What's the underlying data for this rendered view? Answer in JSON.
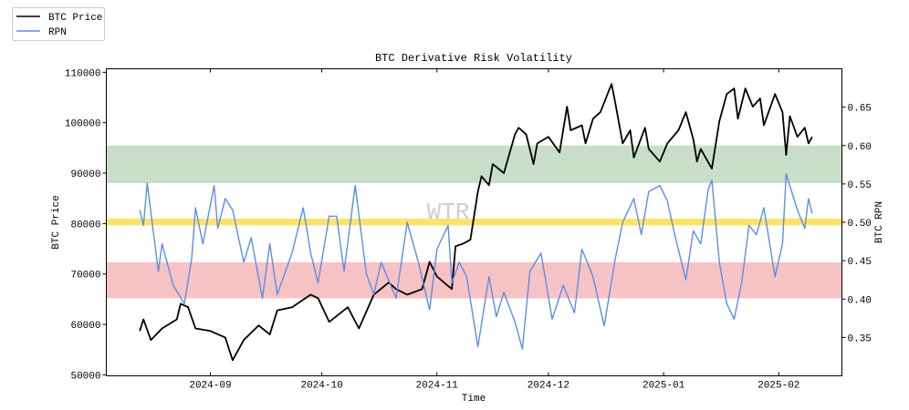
{
  "chart_data": {
    "type": "line",
    "title": "BTC Derivative Risk Volatility",
    "xlabel": "Time",
    "ylabel_left": "BTC Price",
    "ylabel_right": "BTC RPN",
    "watermark": "WTR",
    "legend_position": "top-left (outside)",
    "grid": false,
    "xlim": [
      "2024-08-04",
      "2025-02-18"
    ],
    "ylim_left": [
      49800,
      110700
    ],
    "ylim_right": [
      0.3,
      0.7
    ],
    "x_ticks": [
      "2024-09",
      "2024-10",
      "2024-11",
      "2024-12",
      "2025-01",
      "2025-02"
    ],
    "y_ticks_left": [
      50000,
      60000,
      70000,
      80000,
      90000,
      100000,
      110000
    ],
    "y_ticks_right": [
      "0.35",
      "0.40",
      "0.45",
      "0.50",
      "0.55",
      "0.60",
      "0.65"
    ],
    "bands_right_axis": [
      {
        "name": "high-zone",
        "from": 0.551,
        "to": 0.6,
        "color": "#c8dec8"
      },
      {
        "name": "mid-line",
        "from": 0.496,
        "to": 0.505,
        "color": "#fbe36a"
      },
      {
        "name": "low-zone",
        "from": 0.401,
        "to": 0.448,
        "color": "#f7c2c4"
      }
    ],
    "series": [
      {
        "name": "BTC Price",
        "axis": "left",
        "color": "#000000",
        "points": [
          [
            "2024-08-13",
            58700
          ],
          [
            "2024-08-14",
            61000
          ],
          [
            "2024-08-16",
            56900
          ],
          [
            "2024-08-19",
            59200
          ],
          [
            "2024-08-23",
            61000
          ],
          [
            "2024-08-24",
            64100
          ],
          [
            "2024-08-26",
            63400
          ],
          [
            "2024-08-28",
            59200
          ],
          [
            "2024-09-01",
            58700
          ],
          [
            "2024-09-05",
            57400
          ],
          [
            "2024-09-07",
            52900
          ],
          [
            "2024-09-10",
            56900
          ],
          [
            "2024-09-14",
            59800
          ],
          [
            "2024-09-17",
            58000
          ],
          [
            "2024-09-19",
            62800
          ],
          [
            "2024-09-23",
            63400
          ],
          [
            "2024-09-28",
            65900
          ],
          [
            "2024-09-30",
            65200
          ],
          [
            "2024-10-03",
            60500
          ],
          [
            "2024-10-08",
            63400
          ],
          [
            "2024-10-11",
            59200
          ],
          [
            "2024-10-15",
            65900
          ],
          [
            "2024-10-19",
            68300
          ],
          [
            "2024-10-21",
            67000
          ],
          [
            "2024-10-24",
            65900
          ],
          [
            "2024-10-28",
            67000
          ],
          [
            "2024-10-30",
            72400
          ],
          [
            "2024-11-01",
            69500
          ],
          [
            "2024-11-05",
            67000
          ],
          [
            "2024-11-06",
            75500
          ],
          [
            "2024-11-08",
            76000
          ],
          [
            "2024-11-10",
            76800
          ],
          [
            "2024-11-12",
            86300
          ],
          [
            "2024-11-13",
            89400
          ],
          [
            "2024-11-15",
            87600
          ],
          [
            "2024-11-16",
            91800
          ],
          [
            "2024-11-19",
            90000
          ],
          [
            "2024-11-22",
            97700
          ],
          [
            "2024-11-23",
            99000
          ],
          [
            "2024-11-25",
            97700
          ],
          [
            "2024-11-27",
            91800
          ],
          [
            "2024-11-28",
            95900
          ],
          [
            "2024-12-01",
            97200
          ],
          [
            "2024-12-04",
            94100
          ],
          [
            "2024-12-06",
            103200
          ],
          [
            "2024-12-07",
            98500
          ],
          [
            "2024-12-10",
            99500
          ],
          [
            "2024-12-11",
            95900
          ],
          [
            "2024-12-13",
            100800
          ],
          [
            "2024-12-15",
            102100
          ],
          [
            "2024-12-18",
            107700
          ],
          [
            "2024-12-19",
            103900
          ],
          [
            "2024-12-21",
            95900
          ],
          [
            "2024-12-23",
            98500
          ],
          [
            "2024-12-24",
            93100
          ],
          [
            "2024-12-27",
            99000
          ],
          [
            "2024-12-28",
            94800
          ],
          [
            "2024-12-31",
            92300
          ],
          [
            "2025-01-02",
            95900
          ],
          [
            "2025-01-05",
            98500
          ],
          [
            "2025-01-07",
            102100
          ],
          [
            "2025-01-09",
            96700
          ],
          [
            "2025-01-10",
            92300
          ],
          [
            "2025-01-11",
            94800
          ],
          [
            "2025-01-14",
            90900
          ],
          [
            "2025-01-16",
            100300
          ],
          [
            "2025-01-18",
            105700
          ],
          [
            "2025-01-20",
            106800
          ],
          [
            "2025-01-21",
            100800
          ],
          [
            "2025-01-23",
            106800
          ],
          [
            "2025-01-25",
            103200
          ],
          [
            "2025-01-27",
            104800
          ],
          [
            "2025-01-28",
            99500
          ],
          [
            "2025-01-31",
            105700
          ],
          [
            "2025-02-02",
            102100
          ],
          [
            "2025-02-03",
            93600
          ],
          [
            "2025-02-04",
            101300
          ],
          [
            "2025-02-06",
            97200
          ],
          [
            "2025-02-08",
            99000
          ],
          [
            "2025-02-09",
            95900
          ],
          [
            "2025-02-10",
            97200
          ]
        ]
      },
      {
        "name": "RPN",
        "axis": "right",
        "color": "#5b8ee6",
        "points": [
          [
            "2024-08-13",
            0.516
          ],
          [
            "2024-08-14",
            0.496
          ],
          [
            "2024-08-15",
            0.551
          ],
          [
            "2024-08-18",
            0.436
          ],
          [
            "2024-08-19",
            0.472
          ],
          [
            "2024-08-22",
            0.418
          ],
          [
            "2024-08-25",
            0.394
          ],
          [
            "2024-08-27",
            0.453
          ],
          [
            "2024-08-28",
            0.519
          ],
          [
            "2024-08-30",
            0.472
          ],
          [
            "2024-09-02",
            0.548
          ],
          [
            "2024-09-03",
            0.492
          ],
          [
            "2024-09-05",
            0.531
          ],
          [
            "2024-09-07",
            0.516
          ],
          [
            "2024-09-10",
            0.448
          ],
          [
            "2024-09-12",
            0.48
          ],
          [
            "2024-09-15",
            0.401
          ],
          [
            "2024-09-17",
            0.472
          ],
          [
            "2024-09-19",
            0.406
          ],
          [
            "2024-09-23",
            0.46
          ],
          [
            "2024-09-26",
            0.519
          ],
          [
            "2024-09-28",
            0.46
          ],
          [
            "2024-09-30",
            0.421
          ],
          [
            "2024-10-03",
            0.508
          ],
          [
            "2024-10-05",
            0.508
          ],
          [
            "2024-10-07",
            0.436
          ],
          [
            "2024-10-10",
            0.548
          ],
          [
            "2024-10-13",
            0.433
          ],
          [
            "2024-10-15",
            0.406
          ],
          [
            "2024-10-17",
            0.448
          ],
          [
            "2024-10-21",
            0.401
          ],
          [
            "2024-10-24",
            0.5
          ],
          [
            "2024-10-27",
            0.448
          ],
          [
            "2024-10-30",
            0.386
          ],
          [
            "2024-11-01",
            0.465
          ],
          [
            "2024-11-04",
            0.496
          ],
          [
            "2024-11-05",
            0.421
          ],
          [
            "2024-11-07",
            0.448
          ],
          [
            "2024-11-09",
            0.429
          ],
          [
            "2024-11-12",
            0.338
          ],
          [
            "2024-11-15",
            0.429
          ],
          [
            "2024-11-17",
            0.377
          ],
          [
            "2024-11-19",
            0.409
          ],
          [
            "2024-11-22",
            0.37
          ],
          [
            "2024-11-24",
            0.335
          ],
          [
            "2024-11-26",
            0.436
          ],
          [
            "2024-11-29",
            0.46
          ],
          [
            "2024-12-02",
            0.374
          ],
          [
            "2024-12-05",
            0.418
          ],
          [
            "2024-12-08",
            0.382
          ],
          [
            "2024-12-10",
            0.465
          ],
          [
            "2024-12-13",
            0.429
          ],
          [
            "2024-12-16",
            0.365
          ],
          [
            "2024-12-19",
            0.453
          ],
          [
            "2024-12-21",
            0.5
          ],
          [
            "2024-12-24",
            0.531
          ],
          [
            "2024-12-26",
            0.484
          ],
          [
            "2024-12-28",
            0.54
          ],
          [
            "2024-12-31",
            0.548
          ],
          [
            "2025-01-02",
            0.528
          ],
          [
            "2025-01-04",
            0.484
          ],
          [
            "2025-01-07",
            0.425
          ],
          [
            "2025-01-09",
            0.489
          ],
          [
            "2025-01-11",
            0.472
          ],
          [
            "2025-01-13",
            0.543
          ],
          [
            "2025-01-14",
            0.555
          ],
          [
            "2025-01-16",
            0.448
          ],
          [
            "2025-01-18",
            0.394
          ],
          [
            "2025-01-20",
            0.374
          ],
          [
            "2025-01-22",
            0.421
          ],
          [
            "2025-01-24",
            0.496
          ],
          [
            "2025-01-26",
            0.484
          ],
          [
            "2025-01-28",
            0.519
          ],
          [
            "2025-01-31",
            0.429
          ],
          [
            "2025-02-02",
            0.472
          ],
          [
            "2025-02-03",
            0.563
          ],
          [
            "2025-02-06",
            0.516
          ],
          [
            "2025-02-08",
            0.492
          ],
          [
            "2025-02-09",
            0.531
          ],
          [
            "2025-02-10",
            0.512
          ]
        ]
      }
    ]
  },
  "legend": {
    "items": [
      {
        "label": "BTC Price",
        "color": "#000000"
      },
      {
        "label": "RPN",
        "color": "#5b8ee6"
      }
    ]
  }
}
